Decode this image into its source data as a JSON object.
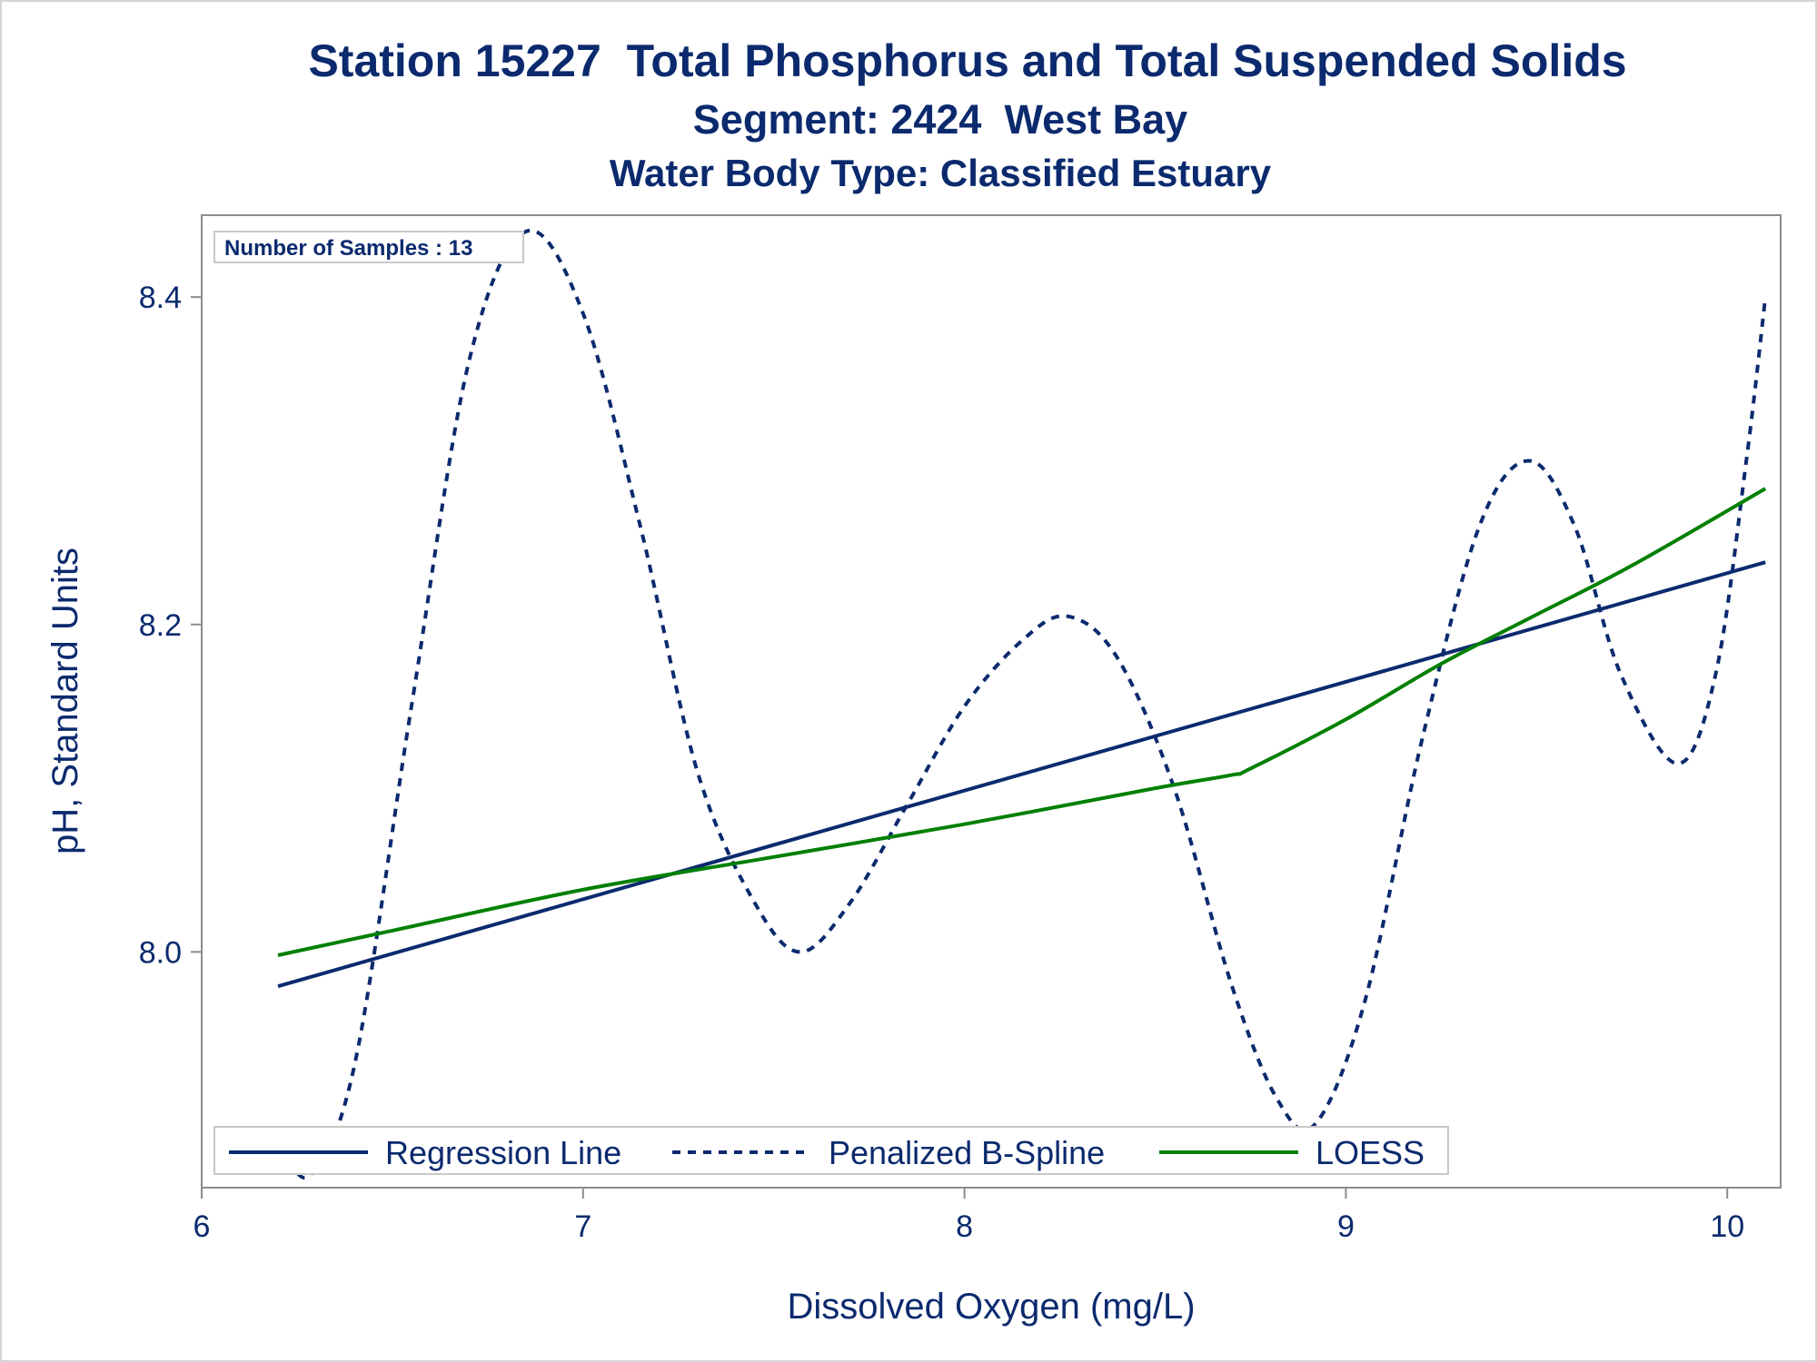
{
  "titles": {
    "line1": "Station 15227  Total Phosphorus and Total Suspended Solids",
    "line2": "Segment: 2424  West Bay",
    "line3": "Water Body Type: Classified Estuary"
  },
  "inset": {
    "text": "Number of Samples : 13"
  },
  "colors": {
    "navy": "#0b2a6e",
    "green": "#008000",
    "axis": "#8c8c8c"
  },
  "chart_data": {
    "type": "line",
    "xlabel": "Dissolved Oxygen (mg/L)",
    "ylabel": "pH, Standard Units",
    "xlim": [
      6.0,
      10.14
    ],
    "ylim": [
      7.856,
      8.45
    ],
    "x_ticks": [
      6,
      7,
      8,
      9,
      10
    ],
    "x_tick_labels": [
      "6",
      "7",
      "8",
      "9",
      "10"
    ],
    "y_ticks": [
      8.0,
      8.2,
      8.4
    ],
    "y_tick_labels": [
      "8.0",
      "8.2",
      "8.4"
    ],
    "grid": false,
    "legend_position": "bottom-inside",
    "series": [
      {
        "name": "Regression Line",
        "style": "solid",
        "color": "#0b2a6e",
        "x": [
          6.2,
          10.1
        ],
        "y": [
          7.979,
          8.238
        ]
      },
      {
        "name": "Penalized B-Spline",
        "style": "dashed",
        "color": "#0b2a6e",
        "x": [
          6.2,
          6.28,
          6.4,
          6.55,
          6.7,
          6.85,
          7.0,
          7.15,
          7.3,
          7.45,
          7.57,
          7.7,
          7.85,
          8.0,
          8.15,
          8.27,
          8.4,
          8.55,
          8.7,
          8.82,
          8.92,
          9.05,
          9.2,
          9.35,
          9.48,
          9.6,
          9.72,
          9.87,
          9.97,
          10.05,
          10.1
        ],
        "y": [
          7.89,
          7.863,
          7.93,
          8.15,
          8.36,
          8.44,
          8.39,
          8.26,
          8.11,
          8.03,
          8.0,
          8.03,
          8.09,
          8.15,
          8.19,
          8.205,
          8.18,
          8.1,
          7.98,
          7.91,
          7.895,
          7.97,
          8.13,
          8.26,
          8.3,
          8.26,
          8.17,
          8.115,
          8.17,
          8.3,
          8.4
        ]
      },
      {
        "name": "LOESS",
        "style": "solid",
        "color": "#008000",
        "x": [
          6.2,
          6.5,
          7.0,
          7.5,
          8.0,
          8.5,
          8.7,
          8.75,
          9.0,
          9.25,
          9.5,
          9.75,
          10.1
        ],
        "y": [
          7.998,
          8.013,
          8.038,
          8.058,
          8.078,
          8.1,
          8.108,
          8.112,
          8.142,
          8.176,
          8.206,
          8.236,
          8.283
        ]
      }
    ]
  }
}
